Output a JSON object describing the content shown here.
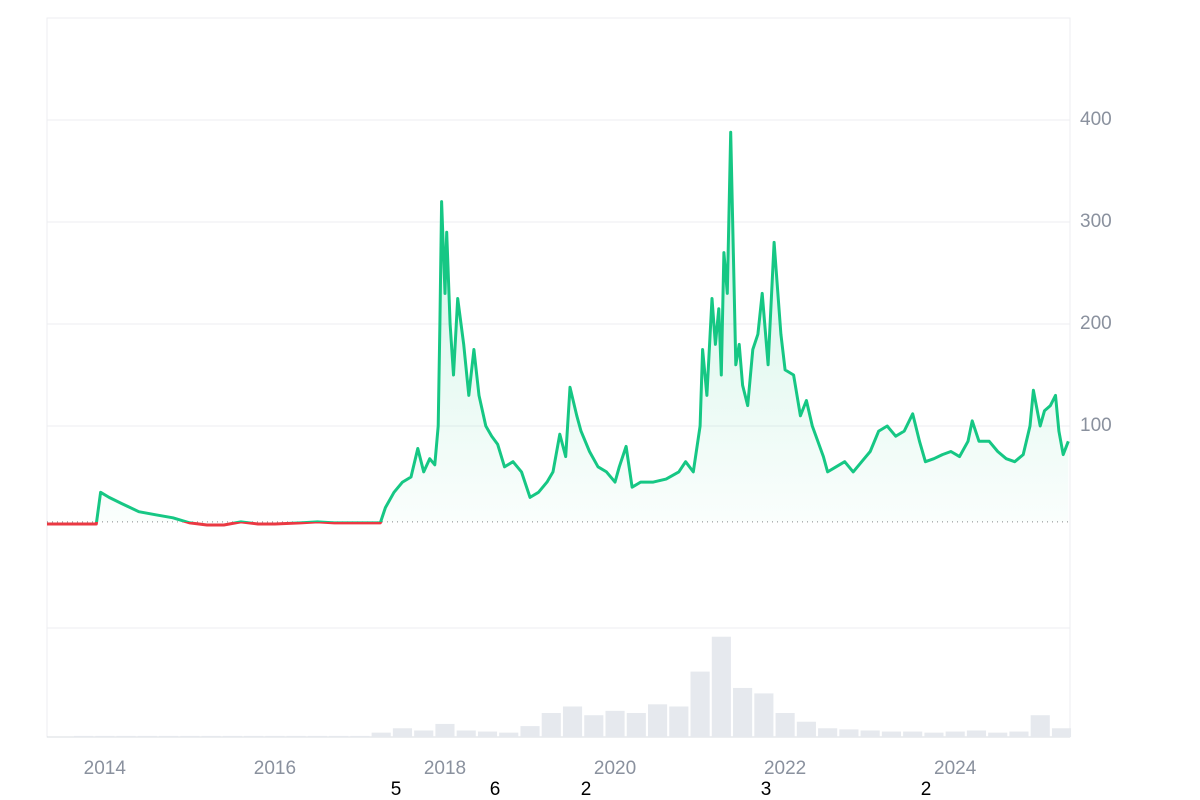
{
  "chart_data": {
    "type": "line",
    "x": [
      2013.32,
      2013.9,
      2013.95,
      2014.05,
      2014.2,
      2014.4,
      2014.6,
      2014.8,
      2015.0,
      2015.2,
      2015.4,
      2015.6,
      2015.8,
      2016.0,
      2016.3,
      2016.5,
      2016.7,
      2016.9,
      2017.1,
      2017.24,
      2017.3,
      2017.4,
      2017.5,
      2017.6,
      2017.68,
      2017.75,
      2017.82,
      2017.88,
      2017.92,
      2017.94,
      2017.96,
      2018.0,
      2018.02,
      2018.06,
      2018.1,
      2018.15,
      2018.22,
      2018.28,
      2018.34,
      2018.4,
      2018.48,
      2018.55,
      2018.62,
      2018.7,
      2018.8,
      2018.9,
      2019.0,
      2019.1,
      2019.2,
      2019.27,
      2019.35,
      2019.42,
      2019.47,
      2019.55,
      2019.6,
      2019.7,
      2019.8,
      2019.9,
      2020.0,
      2020.05,
      2020.13,
      2020.2,
      2020.3,
      2020.45,
      2020.6,
      2020.75,
      2020.83,
      2020.92,
      2021.0,
      2021.03,
      2021.08,
      2021.14,
      2021.18,
      2021.22,
      2021.25,
      2021.28,
      2021.32,
      2021.36,
      2021.42,
      2021.46,
      2021.5,
      2021.56,
      2021.62,
      2021.68,
      2021.73,
      2021.8,
      2021.87,
      2021.95,
      2022.0,
      2022.1,
      2022.18,
      2022.25,
      2022.32,
      2022.45,
      2022.5,
      2022.6,
      2022.7,
      2022.8,
      2022.9,
      2023.0,
      2023.1,
      2023.2,
      2023.3,
      2023.4,
      2023.5,
      2023.58,
      2023.65,
      2023.75,
      2023.85,
      2023.95,
      2024.05,
      2024.15,
      2024.2,
      2024.28,
      2024.4,
      2024.5,
      2024.6,
      2024.7,
      2024.8,
      2024.88,
      2024.92,
      2025.0,
      2025.05,
      2025.12,
      2025.18,
      2025.22,
      2025.27,
      2025.33
    ],
    "series": [
      {
        "color": "#16c784",
        "negative_color": "#ea3943",
        "values": [
          4,
          4,
          35,
          30,
          24,
          16,
          13,
          10,
          5,
          3,
          3,
          6,
          4,
          4,
          5,
          6,
          5,
          5,
          5,
          5,
          20,
          35,
          45,
          50,
          78,
          55,
          68,
          62,
          100,
          200,
          320,
          230,
          290,
          200,
          150,
          225,
          180,
          130,
          175,
          130,
          100,
          90,
          82,
          60,
          65,
          55,
          30,
          35,
          45,
          55,
          92,
          70,
          138,
          110,
          95,
          75,
          60,
          55,
          45,
          60,
          80,
          40,
          45,
          45,
          48,
          55,
          65,
          55,
          100,
          175,
          130,
          225,
          180,
          215,
          150,
          270,
          230,
          388,
          160,
          180,
          140,
          120,
          175,
          190,
          230,
          160,
          280,
          190,
          155,
          150,
          110,
          125,
          100,
          70,
          55,
          60,
          65,
          55,
          65,
          75,
          95,
          100,
          90,
          95,
          112,
          85,
          65,
          68,
          72,
          75,
          70,
          85,
          105,
          85,
          85,
          75,
          68,
          65,
          72,
          100,
          135,
          100,
          115,
          120,
          130,
          95,
          72,
          85
        ]
      }
    ],
    "baseline": 6,
    "xlim": [
      2013.32,
      2025.35
    ],
    "xticks": [
      2014,
      2016,
      2018,
      2020,
      2022,
      2024
    ],
    "ylim": [
      -98,
      500
    ],
    "yticks": [
      100,
      200,
      300,
      400
    ],
    "grid": true,
    "volume": {
      "color": "#e6e9ee",
      "ylim": [
        0,
        100
      ],
      "x": [
        2013.5,
        2013.75,
        2014.0,
        2014.25,
        2014.5,
        2014.75,
        2015.0,
        2015.25,
        2015.5,
        2015.75,
        2016.0,
        2016.25,
        2016.5,
        2016.75,
        2017.0,
        2017.25,
        2017.5,
        2017.75,
        2018.0,
        2018.25,
        2018.5,
        2018.75,
        2019.0,
        2019.25,
        2019.5,
        2019.75,
        2020.0,
        2020.25,
        2020.5,
        2020.75,
        2021.0,
        2021.25,
        2021.5,
        2021.75,
        2022.0,
        2022.25,
        2022.5,
        2022.75,
        2023.0,
        2023.25,
        2023.5,
        2023.75,
        2024.0,
        2024.25,
        2024.5,
        2024.75,
        2025.0,
        2025.25
      ],
      "values": [
        0,
        1,
        1,
        1,
        1,
        1,
        1,
        1,
        1,
        1,
        1,
        1,
        1,
        1,
        1,
        4,
        8,
        6,
        12,
        6,
        5,
        4,
        10,
        22,
        28,
        20,
        24,
        22,
        30,
        28,
        60,
        92,
        45,
        40,
        22,
        14,
        8,
        7,
        6,
        5,
        5,
        4,
        5,
        6,
        4,
        5,
        20,
        8
      ]
    },
    "footer_labels": [
      "5",
      "6",
      "2",
      "3",
      "2"
    ]
  }
}
